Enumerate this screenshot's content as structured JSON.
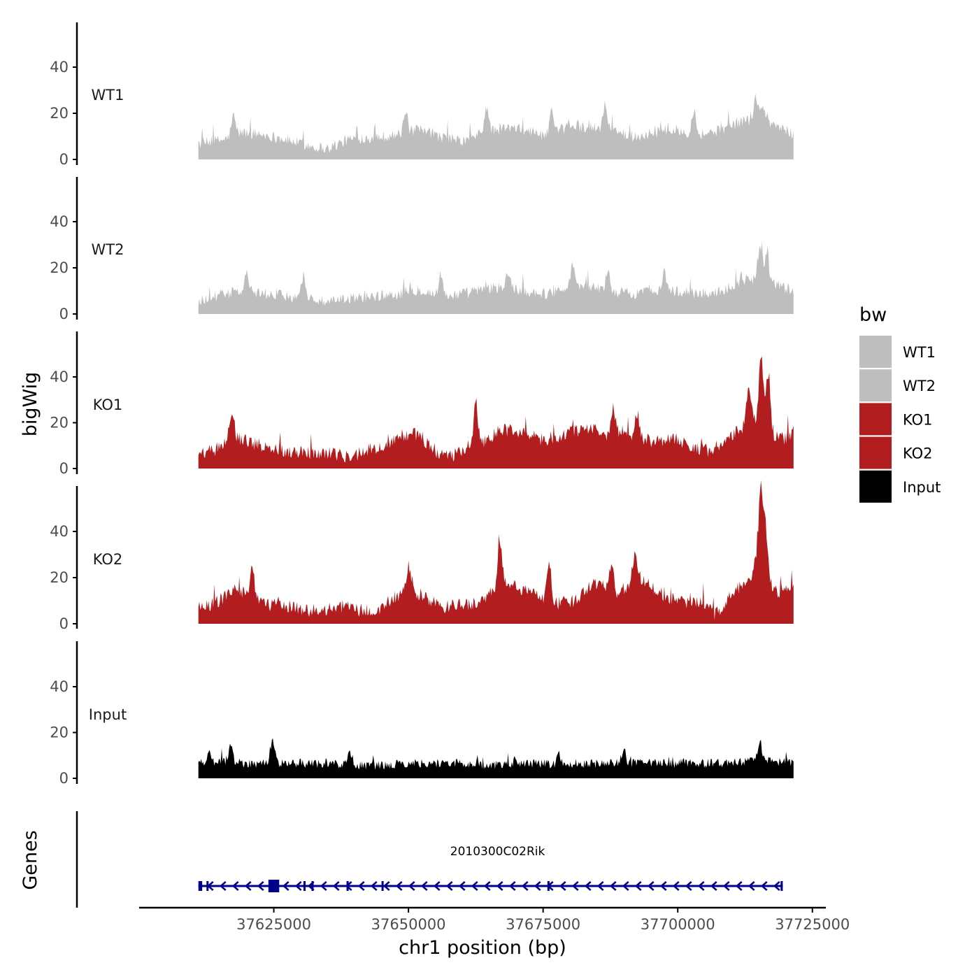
{
  "chart_data": {
    "type": "area",
    "ylabel": "bigWig",
    "xlabel": "chr1 position (bp)",
    "genes_label": "Genes",
    "x_range": [
      37611000,
      37721500
    ],
    "x_axis_range": [
      37600000,
      37727500
    ],
    "x_ticks": [
      37625000,
      37650000,
      37675000,
      37700000,
      37725000
    ],
    "x_tick_labels": [
      "37625000",
      "37650000",
      "37675000",
      "37700000",
      "37725000"
    ],
    "ylim": [
      0,
      57
    ],
    "y_ticks": [
      0,
      20,
      40
    ],
    "y_tick_labels": [
      "0",
      "20",
      "40"
    ],
    "legend_title": "bw",
    "legend": [
      {
        "label": "WT1",
        "color": "#bebebe"
      },
      {
        "label": "WT2",
        "color": "#bebebe"
      },
      {
        "label": "KO1",
        "color": "#b21e1f"
      },
      {
        "label": "KO2",
        "color": "#b21e1f"
      },
      {
        "label": "Input",
        "color": "#000000"
      }
    ],
    "series": [
      {
        "name": "WT1",
        "color": "#bebebe",
        "profile": [
          [
            37611000,
            6
          ],
          [
            37616000,
            8
          ],
          [
            37619000,
            11
          ],
          [
            37623000,
            10
          ],
          [
            37627000,
            8
          ],
          [
            37632000,
            5
          ],
          [
            37635000,
            4
          ],
          [
            37639000,
            8
          ],
          [
            37644000,
            9
          ],
          [
            37648000,
            10
          ],
          [
            37652000,
            12
          ],
          [
            37656000,
            9
          ],
          [
            37660000,
            7
          ],
          [
            37664000,
            11
          ],
          [
            37668000,
            13
          ],
          [
            37672000,
            12
          ],
          [
            37676000,
            9
          ],
          [
            37680000,
            14
          ],
          [
            37684000,
            13
          ],
          [
            37688000,
            12
          ],
          [
            37692000,
            9
          ],
          [
            37696000,
            11
          ],
          [
            37700000,
            12
          ],
          [
            37704000,
            10
          ],
          [
            37708000,
            12
          ],
          [
            37712000,
            16
          ],
          [
            37716000,
            17
          ],
          [
            37719000,
            13
          ],
          [
            37721500,
            10
          ]
        ],
        "peaks": [
          [
            37617500,
            18
          ],
          [
            37649500,
            19
          ],
          [
            37664500,
            22
          ],
          [
            37676500,
            20
          ],
          [
            37686500,
            23
          ],
          [
            37703000,
            21
          ],
          [
            37714500,
            26
          ],
          [
            37715800,
            22
          ]
        ],
        "noise": 5
      },
      {
        "name": "WT2",
        "color": "#bebebe",
        "profile": [
          [
            37611000,
            5
          ],
          [
            37616000,
            8
          ],
          [
            37619000,
            9
          ],
          [
            37623000,
            8
          ],
          [
            37627000,
            7
          ],
          [
            37632000,
            6
          ],
          [
            37635000,
            4
          ],
          [
            37639000,
            6
          ],
          [
            37644000,
            7
          ],
          [
            37648000,
            8
          ],
          [
            37652000,
            10
          ],
          [
            37656000,
            7
          ],
          [
            37660000,
            8
          ],
          [
            37664000,
            10
          ],
          [
            37668000,
            11
          ],
          [
            37672000,
            9
          ],
          [
            37676000,
            8
          ],
          [
            37680000,
            12
          ],
          [
            37684000,
            11
          ],
          [
            37688000,
            9
          ],
          [
            37692000,
            8
          ],
          [
            37696000,
            10
          ],
          [
            37700000,
            9
          ],
          [
            37704000,
            8
          ],
          [
            37708000,
            9
          ],
          [
            37712000,
            14
          ],
          [
            37716000,
            15
          ],
          [
            37719000,
            11
          ],
          [
            37721500,
            9
          ]
        ],
        "peaks": [
          [
            37620000,
            17
          ],
          [
            37630500,
            16
          ],
          [
            37656000,
            16
          ],
          [
            37668500,
            17
          ],
          [
            37680500,
            20
          ],
          [
            37687000,
            18
          ],
          [
            37697500,
            17
          ],
          [
            37715300,
            28
          ],
          [
            37716500,
            24
          ]
        ],
        "noise": 5
      },
      {
        "name": "KO1",
        "color": "#b21e1f",
        "profile": [
          [
            37611000,
            5
          ],
          [
            37614000,
            7
          ],
          [
            37617000,
            14
          ],
          [
            37620000,
            11
          ],
          [
            37623000,
            9
          ],
          [
            37627000,
            7
          ],
          [
            37632000,
            6
          ],
          [
            37636000,
            6
          ],
          [
            37639000,
            4
          ],
          [
            37642000,
            7
          ],
          [
            37646000,
            9
          ],
          [
            37649000,
            14
          ],
          [
            37652000,
            14
          ],
          [
            37655000,
            6
          ],
          [
            37658000,
            4
          ],
          [
            37661000,
            9
          ],
          [
            37664000,
            11
          ],
          [
            37667000,
            16
          ],
          [
            37670000,
            16
          ],
          [
            37673000,
            13
          ],
          [
            37676000,
            11
          ],
          [
            37680000,
            15
          ],
          [
            37684000,
            17
          ],
          [
            37687000,
            13
          ],
          [
            37690000,
            16
          ],
          [
            37693000,
            12
          ],
          [
            37696000,
            11
          ],
          [
            37699000,
            13
          ],
          [
            37702000,
            9
          ],
          [
            37706000,
            7
          ],
          [
            37709000,
            11
          ],
          [
            37712000,
            17
          ],
          [
            37715000,
            22
          ],
          [
            37717000,
            14
          ],
          [
            37719500,
            12
          ],
          [
            37721500,
            15
          ]
        ],
        "peaks": [
          [
            37617200,
            25
          ],
          [
            37662500,
            28
          ],
          [
            37688000,
            26
          ],
          [
            37692500,
            23
          ],
          [
            37715500,
            50
          ],
          [
            37716800,
            40
          ],
          [
            37713200,
            35
          ]
        ],
        "noise": 6
      },
      {
        "name": "KO2",
        "color": "#b21e1f",
        "profile": [
          [
            37611000,
            6
          ],
          [
            37614000,
            8
          ],
          [
            37618000,
            14
          ],
          [
            37621000,
            12
          ],
          [
            37624000,
            7
          ],
          [
            37628000,
            7
          ],
          [
            37631000,
            5
          ],
          [
            37635000,
            5
          ],
          [
            37638000,
            7
          ],
          [
            37641000,
            5
          ],
          [
            37644000,
            4
          ],
          [
            37647000,
            10
          ],
          [
            37650000,
            13
          ],
          [
            37653000,
            11
          ],
          [
            37656000,
            6
          ],
          [
            37659000,
            7
          ],
          [
            37662000,
            8
          ],
          [
            37664000,
            9
          ],
          [
            37666000,
            14
          ],
          [
            37668000,
            17
          ],
          [
            37670000,
            15
          ],
          [
            37672000,
            13
          ],
          [
            37674000,
            12
          ],
          [
            37676000,
            8
          ],
          [
            37678000,
            8
          ],
          [
            37681000,
            9
          ],
          [
            37684000,
            17
          ],
          [
            37687000,
            16
          ],
          [
            37689000,
            10
          ],
          [
            37691000,
            17
          ],
          [
            37693000,
            19
          ],
          [
            37696000,
            13
          ],
          [
            37699000,
            10
          ],
          [
            37702000,
            8
          ],
          [
            37705000,
            8
          ],
          [
            37707000,
            3
          ],
          [
            37709000,
            9
          ],
          [
            37711000,
            14
          ],
          [
            37713000,
            17
          ],
          [
            37715000,
            24
          ],
          [
            37716500,
            18
          ],
          [
            37718500,
            13
          ],
          [
            37721500,
            14
          ]
        ],
        "peaks": [
          [
            37621000,
            24
          ],
          [
            37650000,
            24
          ],
          [
            37667000,
            34
          ],
          [
            37676000,
            26
          ],
          [
            37687800,
            27
          ],
          [
            37692000,
            29
          ],
          [
            37715400,
            57
          ],
          [
            37716300,
            42
          ]
        ],
        "noise": 6
      },
      {
        "name": "Input",
        "color": "#000000",
        "profile": [
          [
            37611000,
            6
          ],
          [
            37616000,
            7
          ],
          [
            37620000,
            6
          ],
          [
            37625000,
            6
          ],
          [
            37630000,
            6
          ],
          [
            37635000,
            6
          ],
          [
            37640000,
            5
          ],
          [
            37645000,
            5
          ],
          [
            37650000,
            6
          ],
          [
            37655000,
            6
          ],
          [
            37660000,
            6
          ],
          [
            37665000,
            5
          ],
          [
            37670000,
            6
          ],
          [
            37675000,
            6
          ],
          [
            37680000,
            5
          ],
          [
            37685000,
            6
          ],
          [
            37690000,
            6
          ],
          [
            37695000,
            6
          ],
          [
            37700000,
            6
          ],
          [
            37705000,
            6
          ],
          [
            37710000,
            6
          ],
          [
            37715000,
            7
          ],
          [
            37721500,
            6
          ]
        ],
        "peaks": [
          [
            37613000,
            12
          ],
          [
            37617000,
            13
          ],
          [
            37624800,
            16
          ],
          [
            37639000,
            12
          ],
          [
            37678000,
            10
          ],
          [
            37690000,
            12
          ],
          [
            37715200,
            16
          ]
        ],
        "noise": 4
      }
    ],
    "genes": [
      {
        "name": "2010300C02Rik",
        "start": 37611000,
        "end": 37719500,
        "strand": "-",
        "color": "#00008b",
        "exons": [
          [
            37611000,
            37611700
          ],
          [
            37612500,
            37612800
          ],
          [
            37624000,
            37626000
          ],
          [
            37630500,
            37630900
          ],
          [
            37632000,
            37632200
          ],
          [
            37638500,
            37638900
          ],
          [
            37645000,
            37645200
          ],
          [
            37675800,
            37676200
          ],
          [
            37719100,
            37719500
          ]
        ]
      }
    ]
  }
}
